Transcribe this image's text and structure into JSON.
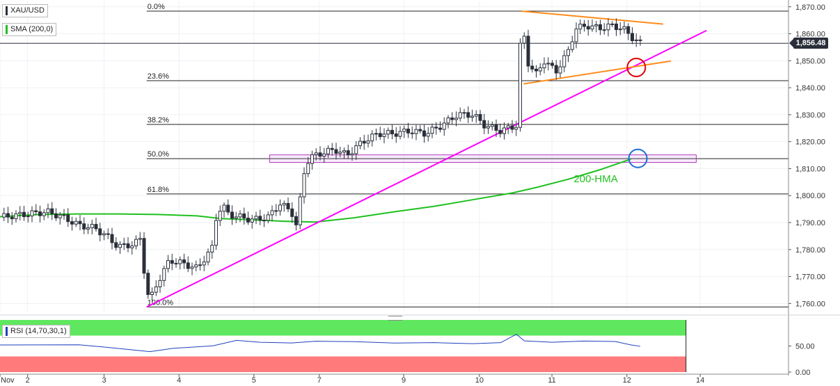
{
  "header": {
    "symbol": "XAU/USD",
    "sma_label": "SMA (200,0)",
    "rsi_label": "RSI (14,70,30,1)",
    "current_price": "1,856.48",
    "hma_label": "200-HMA"
  },
  "colors": {
    "candle": "#2a2f3a",
    "sma": "#1fc01f",
    "trendline": "#ff00ff",
    "triangle": "#ff8c1a",
    "box": "#b23ab8",
    "circle_red": "#e00000",
    "circle_blue": "#1a6fd6",
    "rsi_line": "#1f3fbf",
    "rsi_overbought": "#5fe85f",
    "rsi_oversold": "#ff7a7a"
  },
  "chart_data": {
    "type": "candlestick",
    "title": "XAU/USD",
    "y_axis": {
      "ticks": [
        "1,760.00",
        "1,770.00",
        "1,780.00",
        "1,790.00",
        "1,800.00",
        "1,810.00",
        "1,820.00",
        "1,830.00",
        "1,840.00",
        "1,850.00",
        "1,860.00",
        "1,870.00"
      ],
      "ylim": [
        1757,
        1872
      ]
    },
    "x_axis": {
      "ticks": [
        "Nov",
        "2",
        "3",
        "4",
        "5",
        "7",
        "9",
        "10",
        "11",
        "12",
        "14"
      ],
      "tick_frac": [
        0.0,
        0.035,
        0.132,
        0.227,
        0.322,
        0.405,
        0.512,
        0.608,
        0.7,
        0.795,
        0.888
      ]
    },
    "fibonacci": [
      {
        "label": "0.0%",
        "price": 1868.4
      },
      {
        "label": "23.6%",
        "price": 1842.6
      },
      {
        "label": "38.2%",
        "price": 1826.4
      },
      {
        "label": "50.0%",
        "price": 1813.7
      },
      {
        "label": "61.8%",
        "price": 1800.6
      },
      {
        "label": "100.0%",
        "price": 1758.7
      }
    ],
    "current_price": 1856.48,
    "sma_200": [
      [
        0.0,
        1792.2
      ],
      [
        0.05,
        1793.0
      ],
      [
        0.1,
        1793.2
      ],
      [
        0.15,
        1793.2
      ],
      [
        0.2,
        1793.0
      ],
      [
        0.25,
        1792.5
      ],
      [
        0.28,
        1791.5
      ],
      [
        0.32,
        1791.0
      ],
      [
        0.36,
        1790.5
      ],
      [
        0.4,
        1790.2
      ],
      [
        0.45,
        1791.8
      ],
      [
        0.5,
        1794.0
      ],
      [
        0.55,
        1796.0
      ],
      [
        0.6,
        1798.5
      ],
      [
        0.65,
        1801.0
      ],
      [
        0.68,
        1803.0
      ],
      [
        0.72,
        1806.0
      ],
      [
        0.76,
        1809.5
      ],
      [
        0.8,
        1813.5
      ]
    ],
    "trendline_support": {
      "from": [
        0.186,
        1758.7
      ],
      "to": [
        0.896,
        1861.2
      ]
    },
    "triangle_upper": {
      "from": [
        0.661,
        1868.4
      ],
      "to": [
        0.841,
        1863.6
      ]
    },
    "triangle_lower": {
      "from": [
        0.664,
        1841.4
      ],
      "to": [
        0.851,
        1849.9
      ]
    },
    "demand_zone": {
      "x_from": 0.342,
      "x_to": 0.883,
      "y_low": 1812.3,
      "y_high": 1815.1
    },
    "circles": [
      {
        "color": "red",
        "x": 0.807,
        "price": 1847.5
      },
      {
        "color": "blue",
        "x": 0.809,
        "price": 1813.8
      }
    ],
    "candle_path": [
      [
        0.0,
        1792
      ],
      [
        0.03,
        1793
      ],
      [
        0.06,
        1794
      ],
      [
        0.08,
        1792
      ],
      [
        0.1,
        1789
      ],
      [
        0.12,
        1788
      ],
      [
        0.135,
        1785
      ],
      [
        0.15,
        1781
      ],
      [
        0.17,
        1782
      ],
      [
        0.178,
        1784
      ],
      [
        0.182,
        1774
      ],
      [
        0.186,
        1765
      ],
      [
        0.19,
        1761
      ],
      [
        0.2,
        1768
      ],
      [
        0.215,
        1776
      ],
      [
        0.23,
        1775
      ],
      [
        0.25,
        1773
      ],
      [
        0.27,
        1781
      ],
      [
        0.275,
        1794
      ],
      [
        0.283,
        1796
      ],
      [
        0.29,
        1793
      ],
      [
        0.32,
        1791
      ],
      [
        0.34,
        1792
      ],
      [
        0.355,
        1797
      ],
      [
        0.37,
        1794
      ],
      [
        0.375,
        1788
      ],
      [
        0.38,
        1797
      ],
      [
        0.385,
        1808
      ],
      [
        0.392,
        1814
      ],
      [
        0.41,
        1816
      ],
      [
        0.425,
        1817
      ],
      [
        0.44,
        1815
      ],
      [
        0.46,
        1820
      ],
      [
        0.48,
        1823
      ],
      [
        0.5,
        1823
      ],
      [
        0.52,
        1824
      ],
      [
        0.54,
        1823
      ],
      [
        0.56,
        1826
      ],
      [
        0.58,
        1830
      ],
      [
        0.6,
        1830
      ],
      [
        0.615,
        1826
      ],
      [
        0.635,
        1824
      ],
      [
        0.655,
        1826
      ],
      [
        0.657,
        1845
      ],
      [
        0.662,
        1864
      ],
      [
        0.67,
        1849
      ],
      [
        0.68,
        1845
      ],
      [
        0.69,
        1850
      ],
      [
        0.705,
        1846
      ],
      [
        0.72,
        1853
      ],
      [
        0.73,
        1862
      ],
      [
        0.745,
        1863
      ],
      [
        0.76,
        1862
      ],
      [
        0.775,
        1863
      ],
      [
        0.79,
        1862
      ],
      [
        0.8,
        1859
      ],
      [
        0.812,
        1856.5
      ]
    ],
    "rsi": {
      "ticks": [
        "0.00",
        "50.00"
      ],
      "overbought": 70,
      "oversold": 30,
      "series": [
        [
          0.0,
          52
        ],
        [
          0.05,
          53
        ],
        [
          0.1,
          52
        ],
        [
          0.13,
          49
        ],
        [
          0.16,
          43
        ],
        [
          0.19,
          40
        ],
        [
          0.22,
          45
        ],
        [
          0.27,
          51
        ],
        [
          0.3,
          60
        ],
        [
          0.33,
          58
        ],
        [
          0.37,
          55
        ],
        [
          0.4,
          60
        ],
        [
          0.45,
          58
        ],
        [
          0.5,
          55
        ],
        [
          0.55,
          57
        ],
        [
          0.6,
          55
        ],
        [
          0.635,
          56
        ],
        [
          0.655,
          72
        ],
        [
          0.665,
          60
        ],
        [
          0.7,
          57
        ],
        [
          0.74,
          60
        ],
        [
          0.78,
          58
        ],
        [
          0.8,
          52
        ],
        [
          0.812,
          50
        ]
      ]
    }
  }
}
